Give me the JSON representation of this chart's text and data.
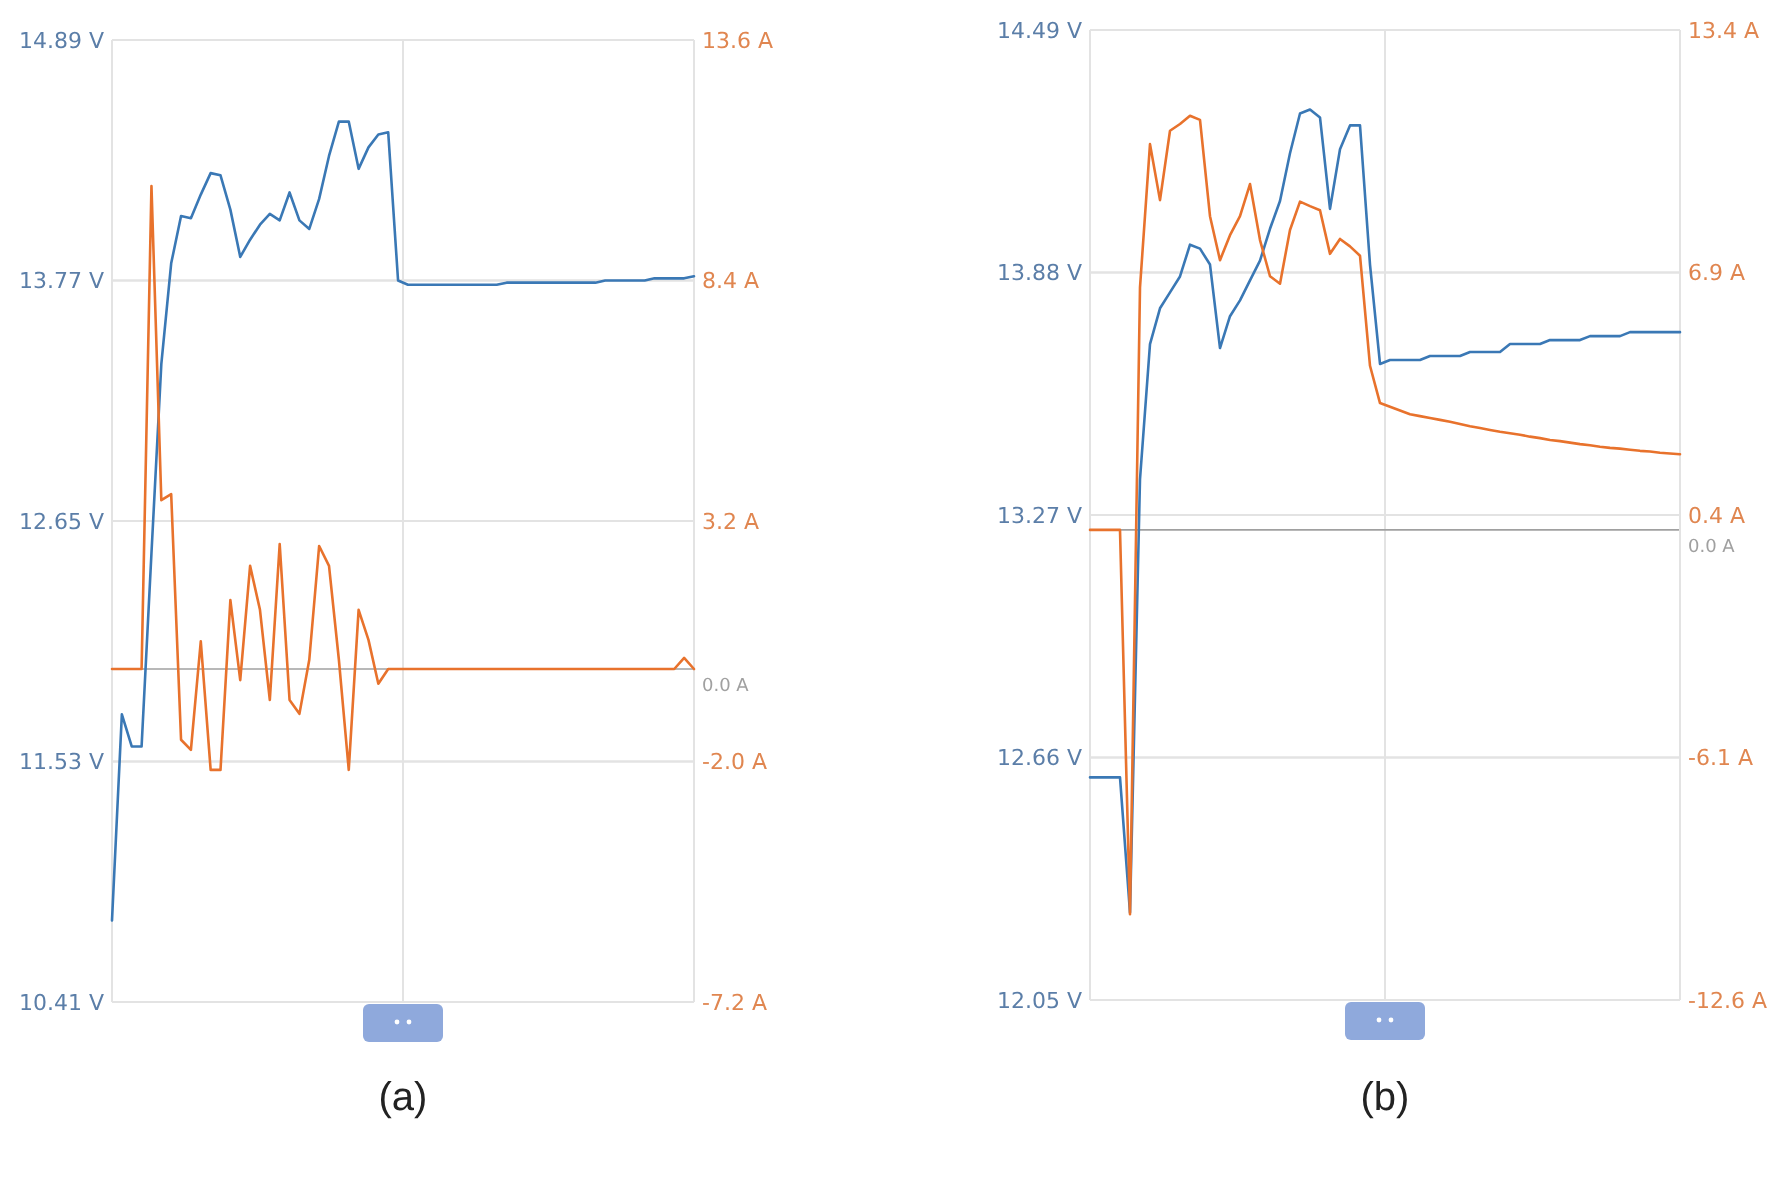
{
  "chart_data": [
    {
      "type": "line",
      "annotations": [
        "(a)"
      ],
      "categories": [
        null,
        null,
        null,
        null,
        null,
        null,
        null,
        null,
        null,
        null,
        null,
        null,
        null,
        null,
        null,
        null,
        null,
        null,
        null,
        null,
        null,
        null,
        null,
        null,
        null,
        null,
        null,
        null,
        null,
        null,
        null,
        null,
        null,
        null,
        null,
        null,
        null,
        null,
        null,
        null,
        null,
        null,
        null,
        null,
        null,
        null,
        null,
        null,
        null,
        null,
        null,
        null,
        null,
        null,
        null,
        null,
        null,
        null,
        null,
        null
      ],
      "ylim": [
        10.41,
        14.89
      ],
      "yticks": [
        {
          "value": 10.41,
          "label": "10.41 V"
        },
        {
          "value": 11.53,
          "label": "11.53 V"
        },
        {
          "value": 12.65,
          "label": "12.65 V"
        },
        {
          "value": 13.77,
          "label": "13.77 V"
        },
        {
          "value": 14.89,
          "label": "14.89 V"
        }
      ],
      "y2lim": [
        -7.2,
        13.6
      ],
      "y2ticks": [
        {
          "value": -7.2,
          "label": "-7.2 A"
        },
        {
          "value": -2.0,
          "label": "-2.0 A"
        },
        {
          "value": 3.2,
          "label": "3.2 A"
        },
        {
          "value": 8.4,
          "label": "8.4 A"
        },
        {
          "value": 13.6,
          "label": "13.6 A"
        }
      ],
      "grid": true,
      "ref_lines": [
        {
          "axis": "y2",
          "value": 0,
          "label": "0.0 A",
          "color": "#a0a0a0"
        }
      ],
      "series": [
        {
          "color": "#3a78b5",
          "values": [
            10.79,
            11.75,
            11.6,
            11.6,
            12.5,
            13.38,
            13.85,
            14.07,
            14.06,
            14.17,
            14.27,
            14.26,
            14.1,
            13.88,
            13.96,
            14.03,
            14.08,
            14.05,
            14.18,
            14.05,
            14.01,
            14.15,
            14.35,
            14.51,
            14.51,
            14.29,
            14.39,
            14.45,
            14.46,
            13.77,
            13.75,
            13.75,
            13.75,
            13.75,
            13.75,
            13.75,
            13.75,
            13.75,
            13.75,
            13.75,
            13.76,
            13.76,
            13.76,
            13.76,
            13.76,
            13.76,
            13.76,
            13.76,
            13.76,
            13.76,
            13.77,
            13.77,
            13.77,
            13.77,
            13.77,
            13.78,
            13.78,
            13.78,
            13.78,
            13.79
          ]
        },
        {
          "color": "#e8722c",
          "axis": "y2",
          "values": [
            0,
            0,
            0,
            0,
            10.44,
            3.65,
            3.78,
            -1.53,
            -1.75,
            0.6,
            -2.18,
            -2.18,
            1.49,
            -0.24,
            2.23,
            1.28,
            -0.67,
            2.7,
            -0.67,
            -0.97,
            0.2,
            2.66,
            2.23,
            0.2,
            -2.18,
            1.28,
            0.63,
            -0.32,
            0,
            0,
            0,
            0,
            0,
            0,
            0,
            0,
            0,
            0,
            0,
            0,
            0,
            0,
            0,
            0,
            0,
            0,
            0,
            0,
            0,
            0,
            0,
            0,
            0,
            0,
            0,
            0,
            0,
            0,
            0.24,
            0
          ]
        }
      ]
    },
    {
      "type": "line",
      "annotations": [
        "(b)"
      ],
      "categories": [
        null,
        null,
        null,
        null,
        null,
        null,
        null,
        null,
        null,
        null,
        null,
        null,
        null,
        null,
        null,
        null,
        null,
        null,
        null,
        null,
        null,
        null,
        null,
        null,
        null,
        null,
        null,
        null,
        null,
        null,
        null,
        null,
        null,
        null,
        null,
        null,
        null,
        null,
        null,
        null,
        null,
        null,
        null,
        null,
        null,
        null,
        null,
        null,
        null,
        null,
        null,
        null,
        null,
        null,
        null,
        null,
        null,
        null,
        null,
        null
      ],
      "ylim": [
        12.05,
        14.49
      ],
      "yticks": [
        {
          "value": 12.05,
          "label": "12.05 V"
        },
        {
          "value": 12.66,
          "label": "12.66 V"
        },
        {
          "value": 13.27,
          "label": "13.27 V"
        },
        {
          "value": 13.88,
          "label": "13.88 V"
        },
        {
          "value": 14.49,
          "label": "14.49 V"
        }
      ],
      "y2lim": [
        -12.6,
        13.4
      ],
      "y2ticks": [
        {
          "value": -12.6,
          "label": "-12.6 A"
        },
        {
          "value": -6.1,
          "label": "-6.1 A"
        },
        {
          "value": 0.4,
          "label": "0.4 A"
        },
        {
          "value": 6.9,
          "label": "6.9 A"
        },
        {
          "value": 13.4,
          "label": "13.4 A"
        }
      ],
      "grid": true,
      "ref_lines": [
        {
          "axis": "y2",
          "value": 0,
          "label": "0.0 A",
          "color": "#a0a0a0"
        }
      ],
      "series": [
        {
          "color": "#3a78b5",
          "values": [
            12.61,
            12.61,
            12.61,
            12.61,
            12.27,
            13.36,
            13.7,
            13.79,
            13.83,
            13.87,
            13.95,
            13.94,
            13.9,
            13.69,
            13.77,
            13.81,
            13.86,
            13.91,
            13.99,
            14.06,
            14.18,
            14.28,
            14.29,
            14.27,
            14.04,
            14.19,
            14.25,
            14.25,
            13.9,
            13.65,
            13.66,
            13.66,
            13.66,
            13.66,
            13.67,
            13.67,
            13.67,
            13.67,
            13.68,
            13.68,
            13.68,
            13.68,
            13.7,
            13.7,
            13.7,
            13.7,
            13.71,
            13.71,
            13.71,
            13.71,
            13.72,
            13.72,
            13.72,
            13.72,
            13.73,
            13.73,
            13.73,
            13.73,
            13.73,
            13.73
          ]
        },
        {
          "color": "#e8722c",
          "axis": "y2",
          "values": [
            0,
            0,
            0,
            0,
            -10.3,
            6.5,
            10.34,
            8.84,
            10.7,
            10.88,
            11.1,
            10.99,
            8.41,
            7.23,
            7.9,
            8.41,
            9.27,
            7.77,
            6.8,
            6.6,
            8.04,
            8.8,
            8.68,
            8.57,
            7.4,
            7.8,
            7.6,
            7.35,
            4.4,
            3.4,
            3.3,
            3.2,
            3.1,
            3.05,
            3.0,
            2.95,
            2.9,
            2.84,
            2.78,
            2.73,
            2.68,
            2.63,
            2.59,
            2.55,
            2.5,
            2.46,
            2.41,
            2.38,
            2.34,
            2.3,
            2.27,
            2.23,
            2.2,
            2.18,
            2.15,
            2.12,
            2.1,
            2.07,
            2.05,
            2.03
          ]
        }
      ]
    }
  ]
}
